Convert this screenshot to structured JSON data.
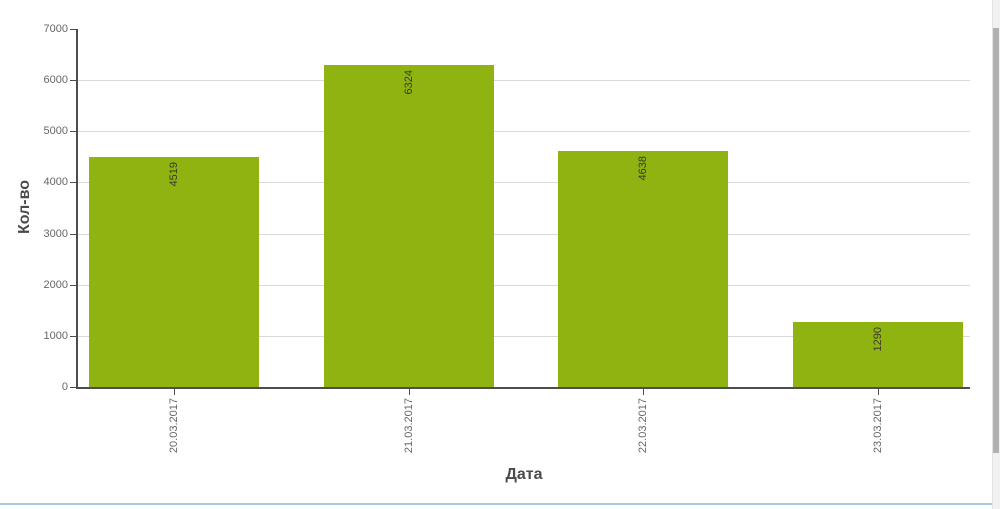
{
  "chart_data": {
    "type": "bar",
    "categories": [
      "20.03.2017",
      "21.03.2017",
      "22.03.2017",
      "23.03.2017"
    ],
    "values": [
      4519,
      6324,
      4638,
      1290
    ],
    "title": "",
    "xlabel": "Дата",
    "ylabel": "Кол-во",
    "ylim": [
      0,
      7000
    ],
    "ytick_step": 1000,
    "legend": "none",
    "grid": "horizontal",
    "bar_color": "#8fb412",
    "bar_label_color": "#3b3b24",
    "grid_color": "#d9d9d9",
    "axis_color": "#4d4d4d",
    "tick_label_color": "#666666",
    "axis_title_color": "#4a4a4a"
  },
  "page": {
    "panel_border_color": "#a9c6e7"
  }
}
